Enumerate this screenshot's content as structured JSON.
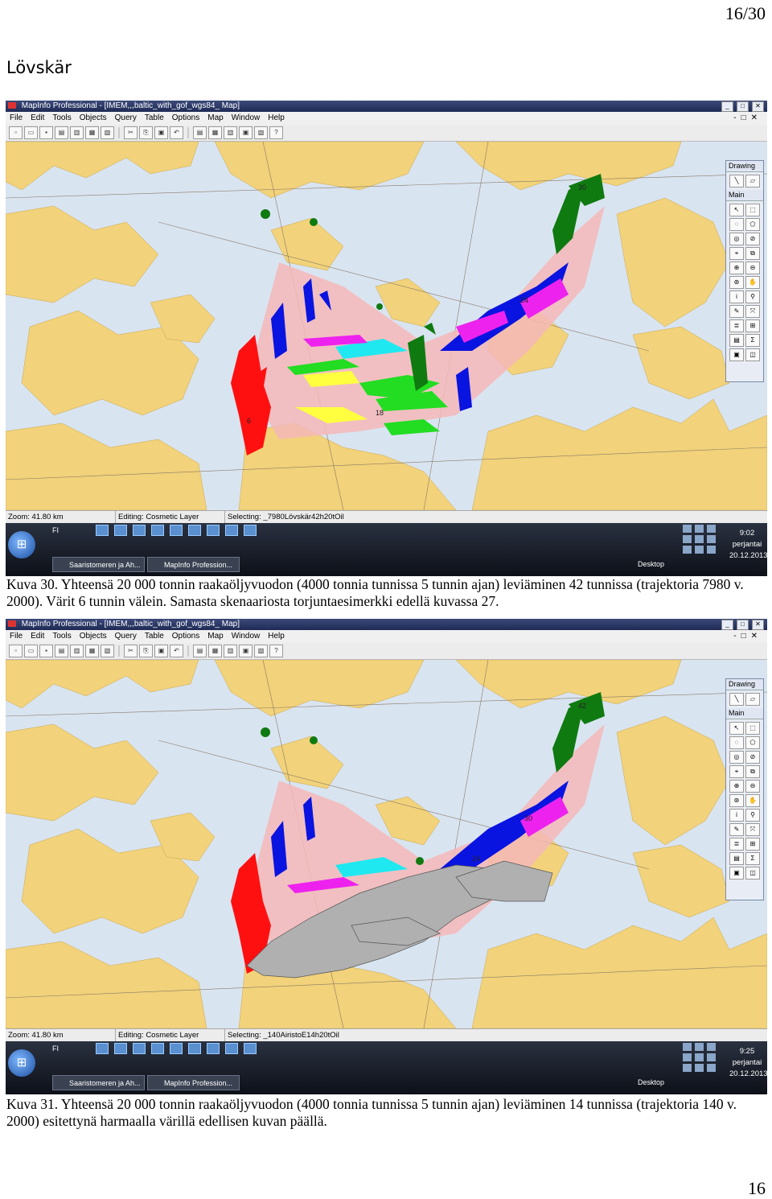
{
  "page": {
    "number": "16/30",
    "footer_number": "16",
    "heading": "Lövskär"
  },
  "captions": [
    "Kuva 30. Yhteensä 20 000 tonnin raakaöljyvuodon (4000 tonnia tunnissa 5 tunnin ajan) leviäminen 42 tunnissa (trajektoria 7980 v. 2000). Värit 6 tunnin välein. Samasta skenaariosta torjuntaesimerkki edellä kuvassa 27.",
    "Kuva 31. Yhteensä 20 000 tonnin raakaöljyvuodon (4000 tonnia tunnissa 5 tunnin ajan) leviäminen 14 tunnissa (trajektoria 140 v. 2000) esitettynä harmaalla värillä edellisen kuvan päällä."
  ],
  "screenshots": [
    {
      "title": "MapInfo Professional - [IMEM,,,baltic_with_gof_wgs84_ Map]",
      "menu": [
        "File",
        "Edit",
        "Tools",
        "Objects",
        "Query",
        "Table",
        "Options",
        "Map",
        "Window",
        "Help"
      ],
      "palette_drawing": "Drawing",
      "palette_main": "Main",
      "status_zoom": "Zoom: 41.80 km",
      "status_editing": "Editing: Cosmetic Layer",
      "status_selecting": "Selecting: _7980Lövskär42h20tOil",
      "taskbar_lang": "FI",
      "taskbar_btn1": "Saaristomeren ja Ah...",
      "taskbar_btn2": "MapInfo Profession...",
      "desktop": "Desktop",
      "clock_time": "9:02",
      "clock_day": "perjantai",
      "clock_date": "20.12.2013",
      "map_labels": [
        "30",
        "24",
        "18",
        "6"
      ]
    },
    {
      "title": "MapInfo Professional - [IMEM,,,baltic_with_gof_wgs84_ Map]",
      "menu": [
        "File",
        "Edit",
        "Tools",
        "Objects",
        "Query",
        "Table",
        "Options",
        "Map",
        "Window",
        "Help"
      ],
      "palette_drawing": "Drawing",
      "palette_main": "Main",
      "status_zoom": "Zoom: 41.80 km",
      "status_editing": "Editing: Cosmetic Layer",
      "status_selecting": "Selecting: _140AiristoE14h20tOil",
      "taskbar_lang": "FI",
      "taskbar_btn1": "Saaristomeren ja Ah...",
      "taskbar_btn2": "MapInfo Profession...",
      "desktop": "Desktop",
      "clock_time": "9:25",
      "clock_day": "perjantai",
      "clock_date": "20.12.2013",
      "map_labels": [
        "42",
        "30",
        "24"
      ]
    }
  ],
  "colors": {
    "sea": "#d9e4f1",
    "land": "#f2d27a",
    "trajectory": "#f4b8b8",
    "slick_red": "#ff1010",
    "slick_blue": "#0a14e0",
    "slick_green": "#0f7a10",
    "slick_lime": "#22dd22",
    "slick_magenta": "#ee22ee",
    "slick_yellow": "#ffff40",
    "slick_cyan": "#20e8f0",
    "slick_grey": "#b0b0b0"
  }
}
